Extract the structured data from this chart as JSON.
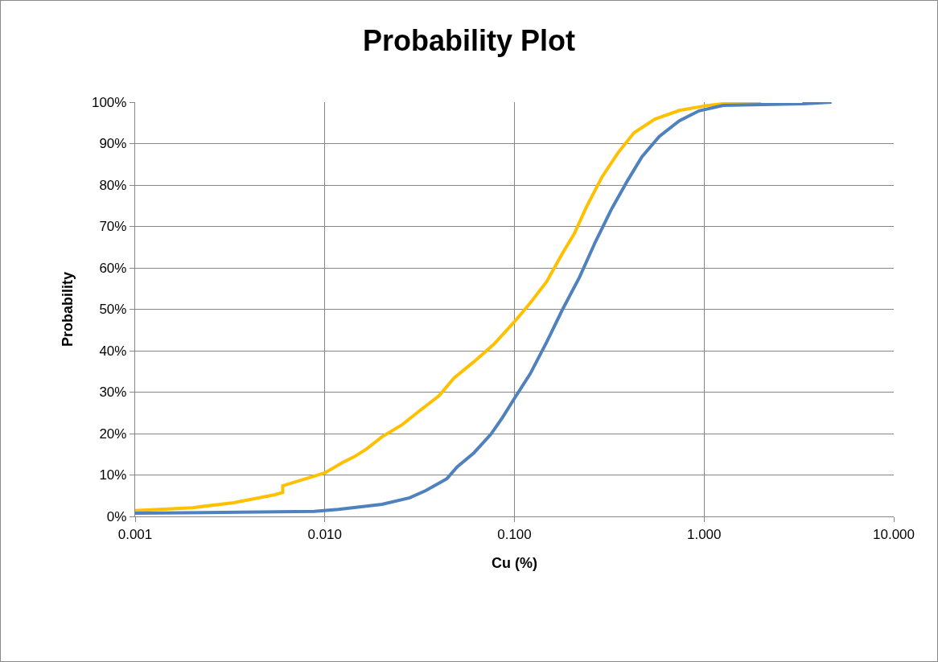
{
  "chart_data": {
    "type": "line",
    "title": "Probability Plot",
    "xlabel": "Cu (%)",
    "ylabel": "Probability",
    "log": "x",
    "grid": true,
    "marker": "none",
    "line_style": "solid",
    "xlim": [
      0.001,
      10
    ],
    "xticks": [
      {
        "value": 0.001,
        "label": "0.001"
      },
      {
        "value": 0.01,
        "label": "0.010"
      },
      {
        "value": 0.1,
        "label": "0.100"
      },
      {
        "value": 1,
        "label": "1.000"
      },
      {
        "value": 10,
        "label": "10.000"
      }
    ],
    "ylim": [
      0,
      100
    ],
    "yticks": [
      {
        "value": 0,
        "label": "0%"
      },
      {
        "value": 10,
        "label": "10%"
      },
      {
        "value": 20,
        "label": "20%"
      },
      {
        "value": 30,
        "label": "30%"
      },
      {
        "value": 40,
        "label": "40%"
      },
      {
        "value": 50,
        "label": "50%"
      },
      {
        "value": 60,
        "label": "60%"
      },
      {
        "value": 70,
        "label": "70%"
      },
      {
        "value": 80,
        "label": "80%"
      },
      {
        "value": 90,
        "label": "90%"
      },
      {
        "value": 100,
        "label": "100%"
      }
    ],
    "series": [
      {
        "color": "#ffc000",
        "x": [
          0.001,
          0.002,
          0.0033,
          0.0054,
          0.006,
          0.006,
          0.01,
          0.0124,
          0.0143,
          0.0166,
          0.02,
          0.0255,
          0.031,
          0.04,
          0.048,
          0.061,
          0.078,
          0.1,
          0.121,
          0.148,
          0.179,
          0.207,
          0.239,
          0.29,
          0.352,
          0.427,
          0.55,
          0.74,
          1.04,
          1.5,
          2.0
        ],
        "values": [
          1.4,
          2.1,
          3.3,
          5.2,
          5.8,
          7.4,
          10.5,
          13,
          14.4,
          16.3,
          19.2,
          22.1,
          25.2,
          29.1,
          33.4,
          37.3,
          41.6,
          47,
          51.5,
          56.7,
          63.5,
          68.3,
          74.6,
          82,
          87.8,
          92.6,
          95.9,
          98,
          99.2,
          100,
          100
        ]
      },
      {
        "color": "#4f81bd",
        "x": [
          0.001,
          0.0036,
          0.0088,
          0.0118,
          0.02,
          0.028,
          0.034,
          0.044,
          0.05,
          0.061,
          0.075,
          0.086,
          0.1,
          0.121,
          0.148,
          0.179,
          0.22,
          0.268,
          0.325,
          0.394,
          0.47,
          0.58,
          0.74,
          0.94,
          1.26,
          3.3,
          4.7
        ],
        "values": [
          0.8,
          1,
          1.2,
          1.7,
          2.9,
          4.5,
          6.2,
          9.1,
          12,
          15.3,
          19.8,
          23.7,
          28.5,
          34.4,
          42.1,
          49.9,
          57.7,
          66.4,
          74.2,
          81,
          86.8,
          91.7,
          95.5,
          97.9,
          99.2,
          99.6,
          100
        ]
      }
    ]
  }
}
